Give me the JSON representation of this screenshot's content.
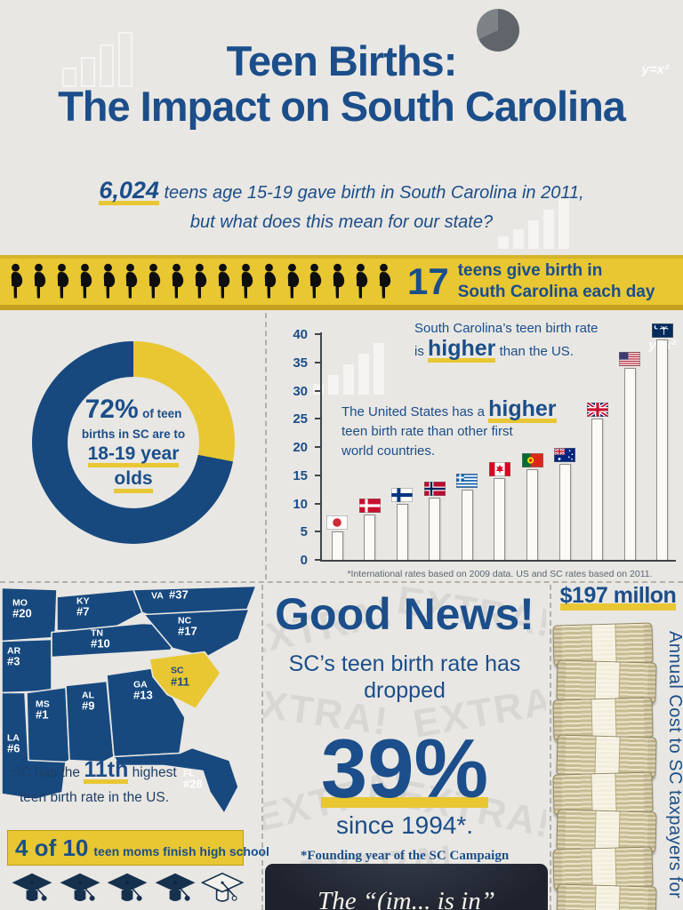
{
  "colors": {
    "blue": "#1b4e8a",
    "yellow": "#e8c733",
    "background": "#e9e7e3",
    "map_navy": "#17497f"
  },
  "header": {
    "title_line1": "Teen Births:",
    "title_line2": "The Impact on South Carolina",
    "intro_number": "6,024",
    "intro_line1_rest": "teens age 15-19 gave birth in South Carolina in 2011,",
    "intro_line2": "but what does this mean for our state?"
  },
  "daily_banner": {
    "figure_count": 17,
    "count": "17",
    "label_line1": "teens give birth in",
    "label_line2": "South Carolina each day"
  },
  "donut": {
    "pct": "72%",
    "after_pct": "of teen",
    "line2": "births in SC are to",
    "big_line1": "18-19 year",
    "big_line2": "olds",
    "chart_data": {
      "type": "pie",
      "title": "72% of teen births in SC are to 18-19 year olds",
      "slices": [
        {
          "label": "other teen births",
          "value": 28,
          "color": "#e8c733"
        },
        {
          "label": "18-19 year olds",
          "value": 72,
          "color": "#17497f"
        }
      ]
    }
  },
  "intl_chart": {
    "ann_sc_line1": "South Carolina’s teen birth rate",
    "ann_sc_pre": "is",
    "ann_sc_big": "higher",
    "ann_sc_post": "than the US.",
    "ann_us_pre": "The United States has a",
    "ann_us_big": "higher",
    "ann_us_line2": "teen birth rate than other first",
    "ann_us_line3": "world countries.",
    "footnote": "*International rates based on 2009 data. US and SC rates based on 2011.",
    "chart_data": {
      "type": "bar",
      "categories": [
        "Japan",
        "Denmark",
        "Finland",
        "Norway",
        "Greece",
        "Canada",
        "Portugal",
        "Australia",
        "United Kingdom",
        "United States",
        "South Carolina"
      ],
      "flags": [
        "japan",
        "denmark",
        "finland",
        "norway",
        "greece",
        "canada",
        "portugal",
        "australia",
        "uk",
        "us",
        "sc"
      ],
      "values": [
        5,
        8,
        10,
        11,
        12.5,
        14.5,
        16,
        17,
        25,
        34,
        39
      ],
      "ylim": [
        0,
        40
      ],
      "yticks": [
        0,
        5,
        10,
        15,
        20,
        25,
        30,
        35,
        40
      ],
      "grid": false,
      "bar_color": "#fbfaf7"
    }
  },
  "map": {
    "states": [
      {
        "abbr": "MO",
        "rank": "#20"
      },
      {
        "abbr": "KY",
        "rank": "#7"
      },
      {
        "abbr": "VA",
        "rank": "#37"
      },
      {
        "abbr": "TN",
        "rank": "#10"
      },
      {
        "abbr": "NC",
        "rank": "#17"
      },
      {
        "abbr": "AR",
        "rank": "#3"
      },
      {
        "abbr": "SC",
        "rank": "#11"
      },
      {
        "abbr": "AL",
        "rank": "#9"
      },
      {
        "abbr": "GA",
        "rank": "#13"
      },
      {
        "abbr": "MS",
        "rank": "#1"
      },
      {
        "abbr": "LA",
        "rank": "#6"
      },
      {
        "abbr": "FL",
        "rank": "#28"
      }
    ],
    "caption_pre": "SC has the",
    "caption_big": "11th",
    "caption_post": "highest",
    "caption_line2": "teen birth rate in the US."
  },
  "good_news": {
    "title": "Good News!",
    "sub_line1": "SC’s teen birth rate has",
    "sub_line2": "dropped",
    "big": "39%",
    "since": "since 1994*.",
    "footnote": "*Founding year of the SC Campaign",
    "bg_word": "EXTRA!"
  },
  "money": {
    "amount": "$197 millon",
    "vertical_label": "Annual Cost to SC taxpayers for",
    "stack_count": 8
  },
  "grad_banner": {
    "big": "4 of 10",
    "rest": "teen moms finish high school",
    "caps_filled": 4,
    "caps_outline": 1
  },
  "quote": {
    "fragment": "The “(im... is in”"
  },
  "decor": {
    "formula": "y=x²"
  }
}
